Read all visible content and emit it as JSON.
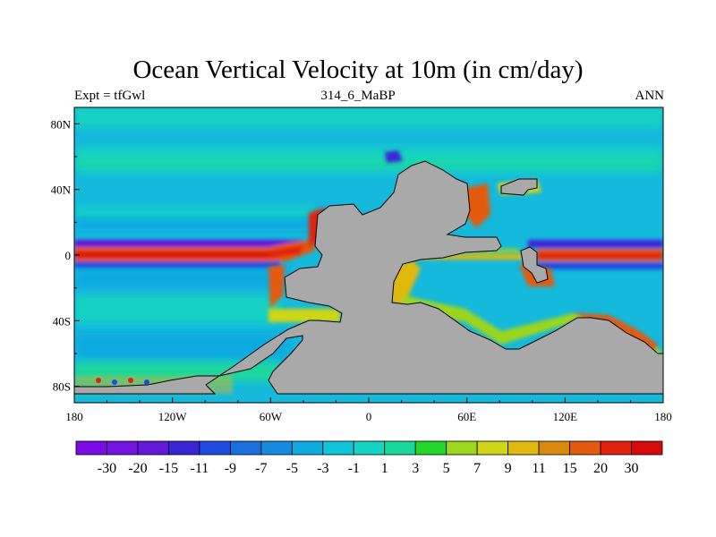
{
  "title": "Ocean Vertical Velocity at 10m (in cm/day)",
  "subtitle_left": "Expt = tfGwl",
  "subtitle_center": "314_6_MaBP",
  "subtitle_right": "ANN",
  "colors": {
    "land": "#a9a9a9",
    "background_field": "#15b9dc",
    "colorbar": [
      "#7b0ce6",
      "#7414e0",
      "#6219d8",
      "#3a25d6",
      "#1e4cdf",
      "#1970dd",
      "#168be0",
      "#0faadf",
      "#10c4da",
      "#16d3c3",
      "#1ad89c",
      "#22d62a",
      "#9cd61d",
      "#cdd516",
      "#e0b910",
      "#d98a0d",
      "#e35a0f",
      "#e3210f",
      "#d60c0c"
    ]
  },
  "chart_data": {
    "type": "heatmap",
    "title": "Ocean Vertical Velocity at 10m (in cm/day)",
    "experiment": "tfGwl",
    "period": "314_6_MaBP",
    "season": "ANN",
    "x_range": [
      -180,
      180
    ],
    "y_range": [
      -90,
      90
    ],
    "x_ticks": [
      {
        "value": -180,
        "label": "180"
      },
      {
        "value": -120,
        "label": "120W"
      },
      {
        "value": -60,
        "label": "60W"
      },
      {
        "value": 0,
        "label": "0"
      },
      {
        "value": 60,
        "label": "60E"
      },
      {
        "value": 120,
        "label": "120E"
      },
      {
        "value": 180,
        "label": "180"
      }
    ],
    "y_ticks": [
      {
        "value": 80,
        "label": "80N"
      },
      {
        "value": 40,
        "label": "40N"
      },
      {
        "value": 0,
        "label": "0"
      },
      {
        "value": -40,
        "label": "40S"
      },
      {
        "value": -80,
        "label": "80S"
      }
    ],
    "colorbar_levels": [
      "-30",
      "-20",
      "-15",
      "-11",
      "-9",
      "-7",
      "-5",
      "-3",
      "-1",
      "1",
      "3",
      "5",
      "7",
      "9",
      "11",
      "15",
      "20",
      "30"
    ],
    "features": [
      {
        "name": "equatorial upwelling band",
        "lat": 0,
        "lon_range": [
          -180,
          -40
        ],
        "level": "30"
      },
      {
        "name": "equatorial downwelling flank",
        "lat": 4,
        "lon_range": [
          -180,
          -50
        ],
        "level": "-20"
      },
      {
        "name": "eastern equatorial upwelling",
        "lat": 0,
        "lon_range": [
          105,
          180
        ],
        "level": "30"
      },
      {
        "name": "eastern equatorial downwelling flank",
        "lat": 4,
        "lon_range": [
          110,
          180
        ],
        "level": "-15"
      },
      {
        "name": "subtropical convergence north",
        "lat": 20,
        "lon_range": [
          -180,
          -40
        ],
        "level": "-5"
      },
      {
        "name": "subtropical convergence south",
        "lat": -20,
        "lon_range": [
          -180,
          -60
        ],
        "level": "-5"
      },
      {
        "name": "mid-latitude upwelling north",
        "lat": 52,
        "lon_range": [
          -180,
          -30
        ],
        "level": "5"
      },
      {
        "name": "coastal upwelling Pangaea west",
        "lat": 25,
        "lon": -33,
        "level": "30"
      },
      {
        "name": "Tethys coastal upwelling",
        "lat": 2,
        "lon": 93,
        "level": "30"
      }
    ]
  },
  "landmasses": [
    {
      "name": "Pangaea (main supercontinent)"
    },
    {
      "name": "North-eastern Pangaea block"
    },
    {
      "name": "Southern Pangaea / Antarctic sector"
    },
    {
      "name": "Tethys island"
    },
    {
      "name": "Tethys islets"
    }
  ]
}
